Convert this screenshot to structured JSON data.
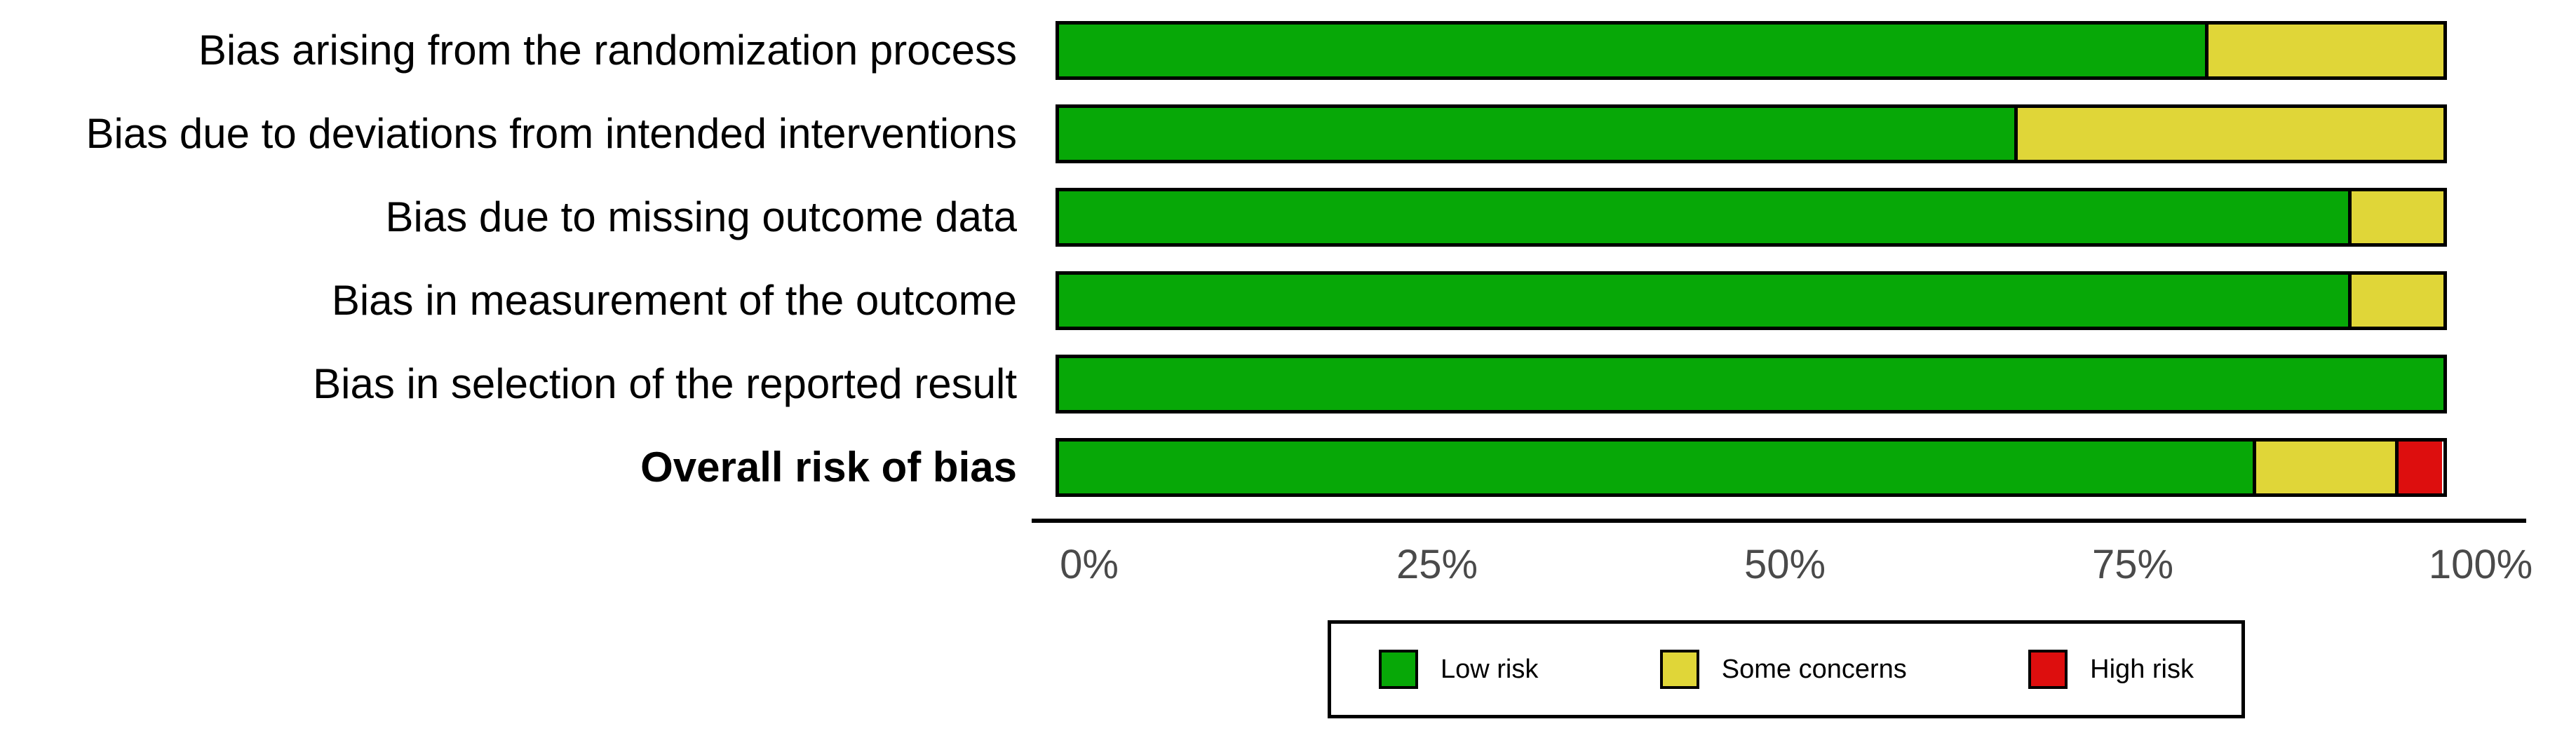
{
  "chart_data": {
    "type": "bar",
    "orientation": "horizontal",
    "stacked": true,
    "title": "",
    "xlabel": "",
    "ylabel": "",
    "xlim": [
      0,
      100
    ],
    "grid": false,
    "categories": [
      "Bias arising from the randomization process",
      "Bias due to deviations from intended interventions",
      "Bias due to missing outcome data",
      "Bias in measurement of the outcome",
      "Bias in selection of the reported result",
      "Overall risk of bias"
    ],
    "bold_category_index": 5,
    "series": [
      {
        "name": "Low risk",
        "color": "#07a807",
        "values": [
          82.8,
          69.0,
          93.1,
          93.1,
          100.0,
          86.2
        ]
      },
      {
        "name": "Some concerns",
        "color": "#e0d638",
        "values": [
          17.2,
          31.0,
          6.9,
          6.9,
          0.0,
          10.3
        ]
      },
      {
        "name": "High risk",
        "color": "#dd0e0e",
        "values": [
          0.0,
          0.0,
          0.0,
          0.0,
          0.0,
          3.4
        ]
      }
    ],
    "x_ticks": [
      "0%",
      "25%",
      "50%",
      "75%",
      "100%"
    ],
    "x_tick_values": [
      0,
      25,
      50,
      75,
      100
    ],
    "legend": {
      "position": "bottom",
      "entries": [
        "Low risk",
        "Some concerns",
        "High risk"
      ]
    },
    "colors": {
      "bar_border": "#000000",
      "axis_line": "#000000",
      "tick_text": "#4a4a4a",
      "label_text": "#000000",
      "background": "#ffffff"
    }
  }
}
